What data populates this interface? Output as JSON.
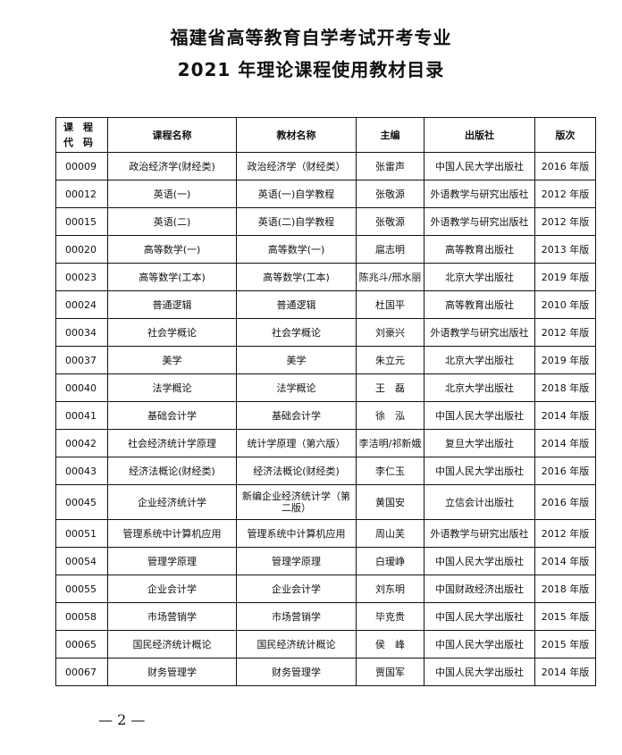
{
  "title_line1": "福建省高等教育自学考试开考专业",
  "title_line2": "2021 年理论课程使用教材目录",
  "headers": {
    "code_line1": "课　程",
    "code_line2": "代　码",
    "course": "课程名称",
    "textbook": "教材名称",
    "editor": "主编",
    "publisher": "出版社",
    "edition": "版次"
  },
  "rows": [
    {
      "code": "00009",
      "course": "政治经济学(财经类)",
      "textbook": "政治经济学（财经类）",
      "editor": "张雷声",
      "publisher": "中国人民大学出版社",
      "edition": "2016 年版"
    },
    {
      "code": "00012",
      "course": "英语(一)",
      "textbook": "英语(一)自学教程",
      "editor": "张敬源",
      "publisher": "外语教学与研究出版社",
      "edition": "2012 年版"
    },
    {
      "code": "00015",
      "course": "英语(二)",
      "textbook": "英语(二)自学教程",
      "editor": "张敬源",
      "publisher": "外语教学与研究出版社",
      "edition": "2012 年版"
    },
    {
      "code": "00020",
      "course": "高等数学(一)",
      "textbook": "高等数学(一)",
      "editor": "扈志明",
      "publisher": "高等教育出版社",
      "edition": "2013 年版"
    },
    {
      "code": "00023",
      "course": "高等数学(工本)",
      "textbook": "高等数学(工本)",
      "editor": "陈兆斗/邢水丽",
      "publisher": "北京大学出版社",
      "edition": "2019 年版"
    },
    {
      "code": "00024",
      "course": "普通逻辑",
      "textbook": "普通逻辑",
      "editor": "杜国平",
      "publisher": "高等教育出版社",
      "edition": "2010 年版"
    },
    {
      "code": "00034",
      "course": "社会学概论",
      "textbook": "社会学概论",
      "editor": "刘豪兴",
      "publisher": "外语教学与研究出版社",
      "edition": "2012 年版"
    },
    {
      "code": "00037",
      "course": "美学",
      "textbook": "美学",
      "editor": "朱立元",
      "publisher": "北京大学出版社",
      "edition": "2019 年版"
    },
    {
      "code": "00040",
      "course": "法学概论",
      "textbook": "法学概论",
      "editor": "王　磊",
      "publisher": "北京大学出版社",
      "edition": "2018 年版"
    },
    {
      "code": "00041",
      "course": "基础会计学",
      "textbook": "基础会计学",
      "editor": "徐　泓",
      "publisher": "中国人民大学出版社",
      "edition": "2014 年版"
    },
    {
      "code": "00042",
      "course": "社会经济统计学原理",
      "textbook": "统计学原理（第六版）",
      "editor": "李洁明/祁新娥",
      "publisher": "复旦大学出版社",
      "edition": "2014 年版"
    },
    {
      "code": "00043",
      "course": "经济法概论(财经类)",
      "textbook": "经济法概论(财经类)",
      "editor": "李仁玉",
      "publisher": "中国人民大学出版社",
      "edition": "2016 年版"
    },
    {
      "code": "00045",
      "course": "企业经济统计学",
      "textbook": "新编企业经济统计学（第二版）",
      "editor": "黄国安",
      "publisher": "立信会计出版社",
      "edition": "2016 年版"
    },
    {
      "code": "00051",
      "course": "管理系统中计算机应用",
      "textbook": "管理系统中计算机应用",
      "editor": "周山芙",
      "publisher": "外语教学与研究出版社",
      "edition": "2012 年版"
    },
    {
      "code": "00054",
      "course": "管理学原理",
      "textbook": "管理学原理",
      "editor": "白瑷峥",
      "publisher": "中国人民大学出版社",
      "edition": "2014 年版"
    },
    {
      "code": "00055",
      "course": "企业会计学",
      "textbook": "企业会计学",
      "editor": "刘东明",
      "publisher": "中国财政经济出版社",
      "edition": "2018 年版"
    },
    {
      "code": "00058",
      "course": "市场营销学",
      "textbook": "市场营销学",
      "editor": "毕克贵",
      "publisher": "中国人民大学出版社",
      "edition": "2015 年版"
    },
    {
      "code": "00065",
      "course": "国民经济统计概论",
      "textbook": "国民经济统计概论",
      "editor": "侯　峰",
      "publisher": "中国人民大学出版社",
      "edition": "2015 年版"
    },
    {
      "code": "00067",
      "course": "财务管理学",
      "textbook": "财务管理学",
      "editor": "贾国军",
      "publisher": "中国人民大学出版社",
      "edition": "2014 年版"
    }
  ],
  "page_number": "— 2 —"
}
